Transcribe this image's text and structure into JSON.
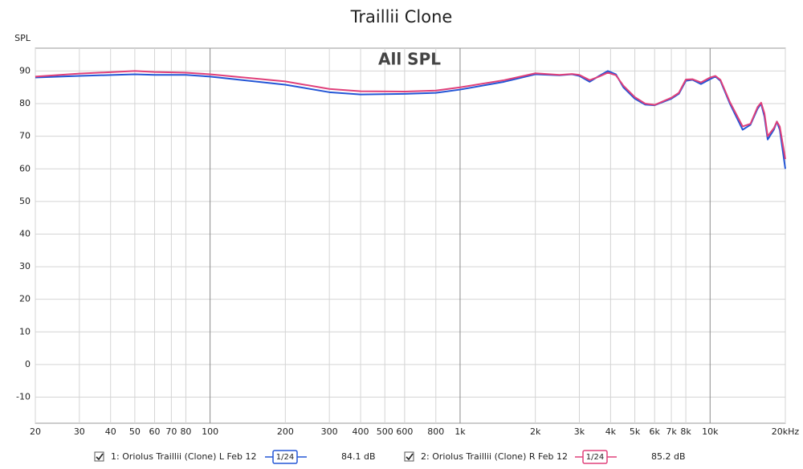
{
  "chart_data": {
    "type": "line",
    "title": "Traillii Clone",
    "annotation": "All SPL",
    "y_label": "SPL",
    "log_x": true,
    "grid": true,
    "xlim": [
      20,
      20000
    ],
    "ylim": [
      -18,
      97
    ],
    "yticks": [
      -10,
      0,
      10,
      20,
      30,
      40,
      50,
      60,
      70,
      80,
      90
    ],
    "xticks": [
      20,
      30,
      40,
      50,
      60,
      70,
      80,
      100,
      200,
      300,
      400,
      500,
      600,
      800,
      {
        "value": 1000,
        "label": "1k"
      },
      {
        "value": 2000,
        "label": "2k"
      },
      {
        "value": 3000,
        "label": "3k"
      },
      {
        "value": 4000,
        "label": "4k"
      },
      {
        "value": 5000,
        "label": "5k"
      },
      {
        "value": 6000,
        "label": "6k"
      },
      {
        "value": 7000,
        "label": "7k"
      },
      {
        "value": 8000,
        "label": "8k"
      },
      {
        "value": 10000,
        "label": "10k"
      },
      {
        "value": 20000,
        "label": "20kHz"
      }
    ],
    "x": [
      20,
      30,
      50,
      60,
      80,
      100,
      200,
      300,
      400,
      600,
      800,
      1000,
      1500,
      2000,
      2500,
      2800,
      3000,
      3300,
      3600,
      3900,
      4200,
      4500,
      5000,
      5500,
      6000,
      7000,
      7500,
      8000,
      8500,
      9200,
      10000,
      10500,
      11000,
      12000,
      13500,
      14500,
      15500,
      16000,
      16500,
      17000,
      18000,
      18500,
      19000,
      20000
    ],
    "series": [
      {
        "name": "1: Oriolus Traillii (Clone) L Feb 12",
        "color": "#2456d6",
        "smoothing": "1/24",
        "level": {
          "value": 84.1,
          "label": "84.1 dB"
        },
        "values": [
          88,
          88.5,
          89,
          88.8,
          88.8,
          88.3,
          85.8,
          83.5,
          82.8,
          83,
          83.3,
          84.3,
          86.7,
          89,
          88.7,
          89,
          88.5,
          86.7,
          88.5,
          90,
          89,
          85,
          81.5,
          79.7,
          79.5,
          81.5,
          83,
          87,
          87.3,
          86,
          87.5,
          88.3,
          87,
          80,
          72,
          73.5,
          78.5,
          80,
          76,
          69,
          72,
          74.5,
          72,
          60
        ]
      },
      {
        "name": "2: Oriolus Traillii (Clone) R Feb 12",
        "color": "#e0407a",
        "smoothing": "1/24",
        "level": {
          "value": 85.2,
          "label": "85.2 dB"
        },
        "values": [
          88.3,
          89.2,
          90,
          89.7,
          89.5,
          89,
          86.8,
          84.5,
          83.8,
          83.7,
          84,
          85,
          87.2,
          89.3,
          88.8,
          89.1,
          88.8,
          87.2,
          88.3,
          89.5,
          88.7,
          85.5,
          82,
          80,
          79.6,
          81.8,
          83.3,
          87.4,
          87.5,
          86.5,
          88,
          88.5,
          87.3,
          80.5,
          73,
          73.8,
          79,
          80.3,
          77,
          70,
          72.5,
          74.5,
          73,
          63
        ]
      }
    ]
  }
}
